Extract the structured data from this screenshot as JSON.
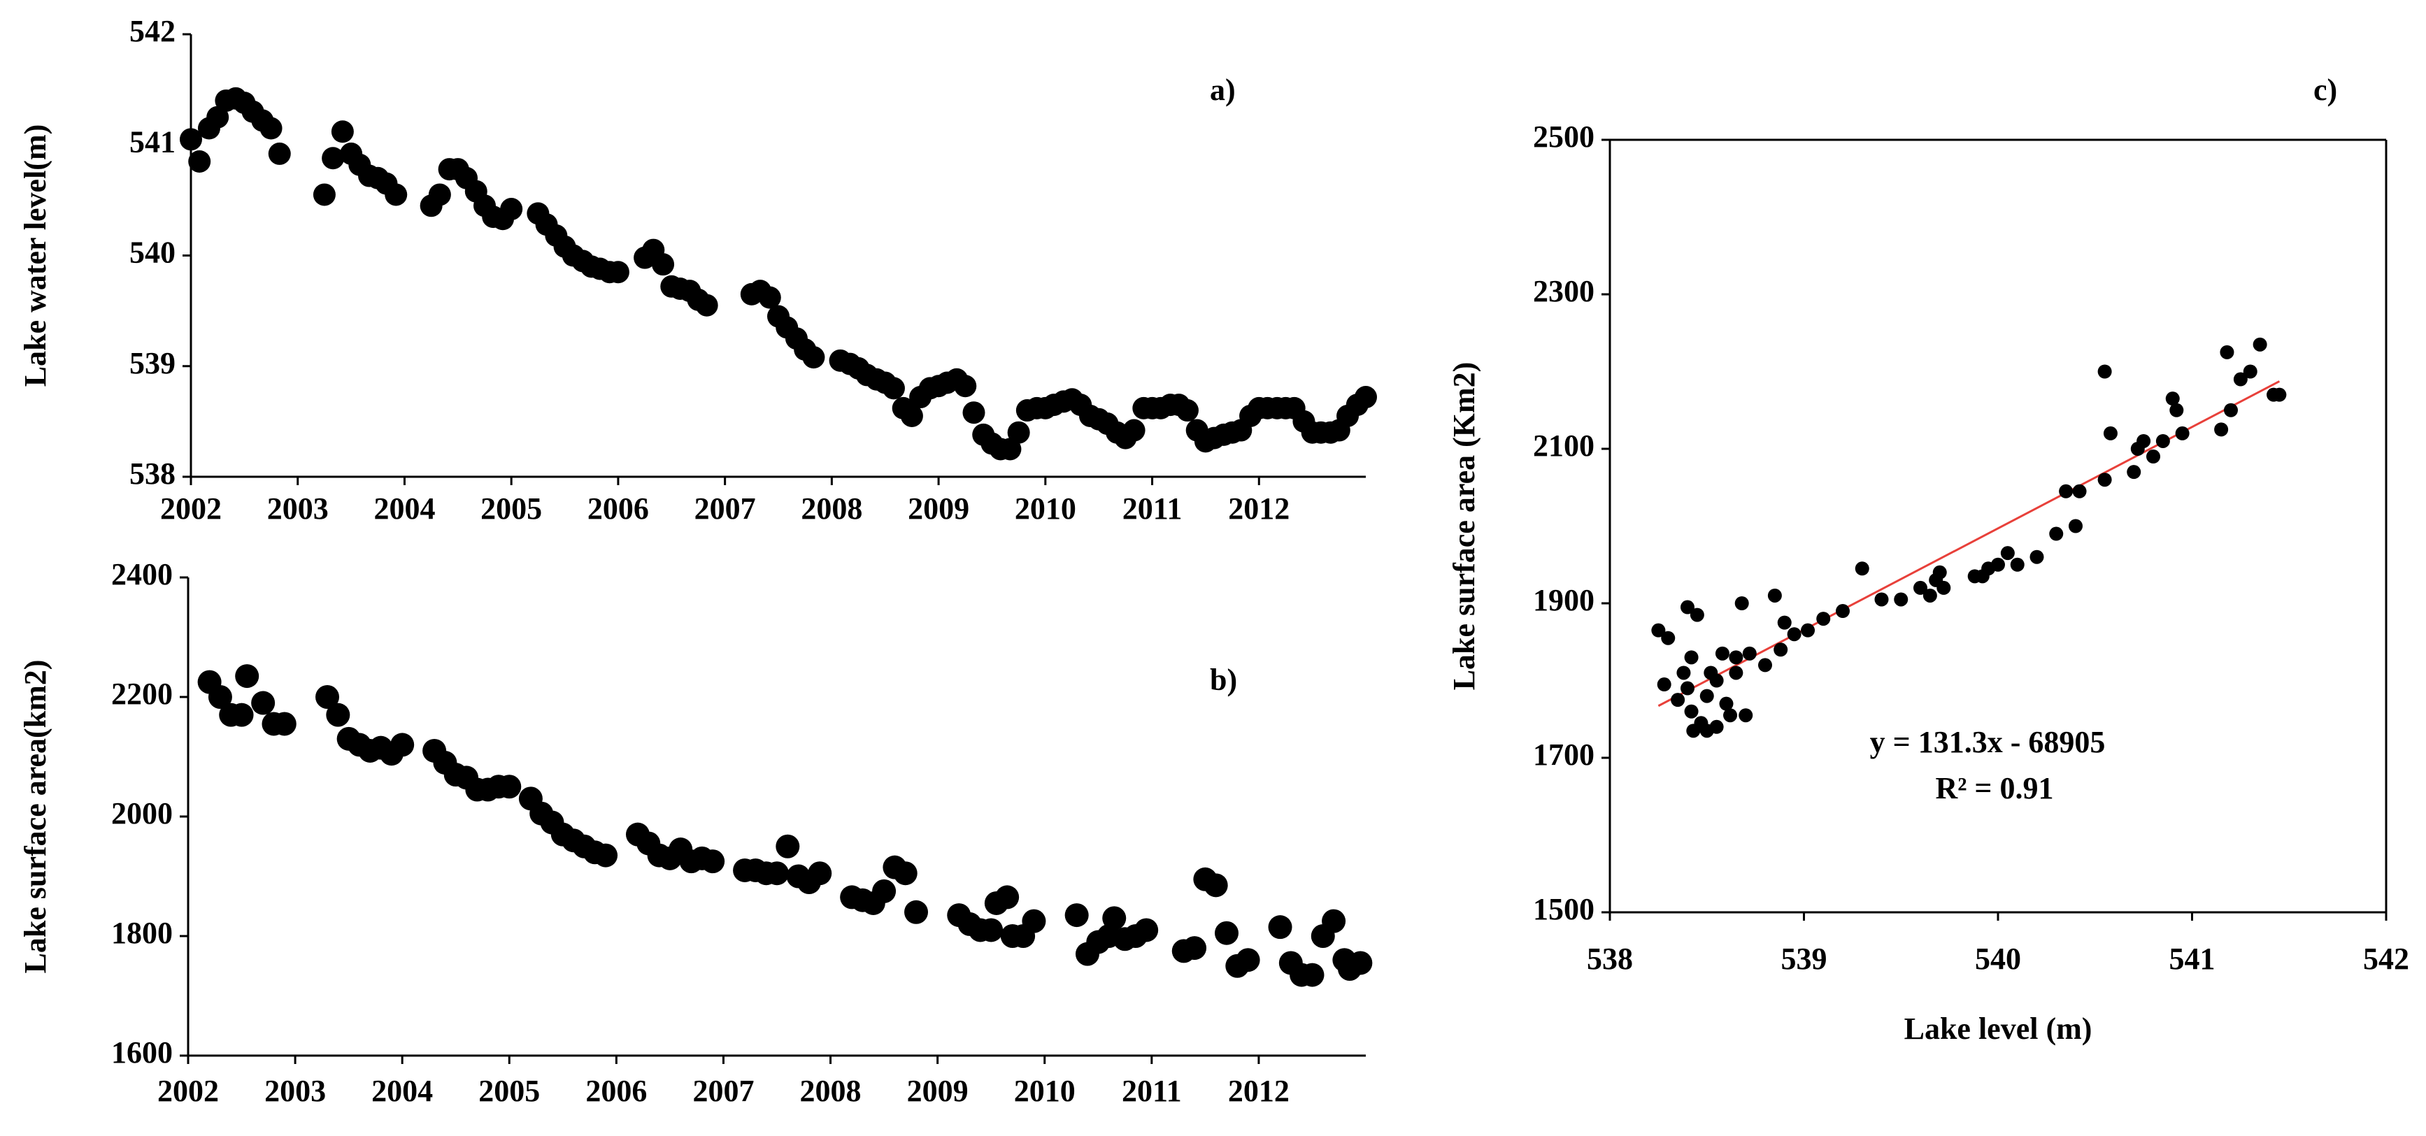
{
  "chart_data": [
    {
      "type": "scatter",
      "label": "a)",
      "ylabel": "Lake water level(m)",
      "color": "#000000",
      "frame": false,
      "xlim": [
        2002,
        2013
      ],
      "xticks": [
        2002,
        2003,
        2004,
        2005,
        2006,
        2007,
        2008,
        2009,
        2010,
        2011,
        2012
      ],
      "ylim": [
        538,
        542
      ],
      "yticks": [
        538,
        539,
        540,
        541,
        542
      ],
      "x": [
        2002.0,
        2002.08,
        2002.17,
        2002.25,
        2002.33,
        2002.42,
        2002.5,
        2002.58,
        2002.67,
        2002.75,
        2002.83,
        2003.25,
        2003.33,
        2003.42,
        2003.5,
        2003.58,
        2003.67,
        2003.75,
        2003.83,
        2003.92,
        2004.25,
        2004.33,
        2004.42,
        2004.5,
        2004.58,
        2004.67,
        2004.75,
        2004.83,
        2004.92,
        2005.0,
        2005.25,
        2005.33,
        2005.42,
        2005.5,
        2005.58,
        2005.67,
        2005.75,
        2005.83,
        2005.92,
        2006.0,
        2006.25,
        2006.33,
        2006.42,
        2006.5,
        2006.58,
        2006.67,
        2006.75,
        2006.83,
        2007.25,
        2007.33,
        2007.42,
        2007.5,
        2007.58,
        2007.67,
        2007.75,
        2007.83,
        2008.08,
        2008.17,
        2008.25,
        2008.33,
        2008.42,
        2008.5,
        2008.58,
        2008.67,
        2008.75,
        2008.83,
        2008.92,
        2009.0,
        2009.08,
        2009.17,
        2009.25,
        2009.33,
        2009.42,
        2009.5,
        2009.58,
        2009.67,
        2009.75,
        2009.83,
        2009.92,
        2010.0,
        2010.08,
        2010.17,
        2010.25,
        2010.33,
        2010.42,
        2010.5,
        2010.58,
        2010.67,
        2010.75,
        2010.83,
        2010.92,
        2011.0,
        2011.08,
        2011.17,
        2011.25,
        2011.33,
        2011.42,
        2011.5,
        2011.58,
        2011.67,
        2011.75,
        2011.83,
        2011.92,
        2012.0,
        2012.08,
        2012.17,
        2012.25,
        2012.33,
        2012.42,
        2012.5,
        2012.58,
        2012.67,
        2012.75,
        2012.83,
        2012.92,
        2013.0
      ],
      "values": [
        541.05,
        540.85,
        541.15,
        541.25,
        541.4,
        541.42,
        541.38,
        541.3,
        541.22,
        541.15,
        540.92,
        540.55,
        540.88,
        541.12,
        540.92,
        540.82,
        540.72,
        540.7,
        540.65,
        540.55,
        540.45,
        540.55,
        540.78,
        540.78,
        540.7,
        540.58,
        540.45,
        540.35,
        540.33,
        540.42,
        540.38,
        540.28,
        540.18,
        540.08,
        540.0,
        539.95,
        539.9,
        539.88,
        539.85,
        539.85,
        539.98,
        540.05,
        539.92,
        539.72,
        539.7,
        539.68,
        539.6,
        539.55,
        539.65,
        539.68,
        539.62,
        539.45,
        539.35,
        539.25,
        539.15,
        539.08,
        539.05,
        539.02,
        538.98,
        538.92,
        538.88,
        538.85,
        538.8,
        538.62,
        538.55,
        538.72,
        538.8,
        538.82,
        538.85,
        538.88,
        538.82,
        538.58,
        538.38,
        538.3,
        538.25,
        538.25,
        538.4,
        538.6,
        538.62,
        538.62,
        538.65,
        538.68,
        538.7,
        538.65,
        538.55,
        538.52,
        538.48,
        538.4,
        538.35,
        538.42,
        538.62,
        538.62,
        538.62,
        538.65,
        538.65,
        538.6,
        538.42,
        538.32,
        538.35,
        538.38,
        538.4,
        538.42,
        538.55,
        538.62,
        538.62,
        538.62,
        538.62,
        538.62,
        538.5,
        538.4,
        538.4,
        538.4,
        538.42,
        538.55,
        538.65,
        538.72
      ]
    },
    {
      "type": "scatter",
      "label": "b)",
      "ylabel": "Lake surface area(km2)",
      "color": "#000000",
      "frame": false,
      "xlim": [
        2002,
        2013
      ],
      "xticks": [
        2002,
        2003,
        2004,
        2005,
        2006,
        2007,
        2008,
        2009,
        2010,
        2011,
        2012
      ],
      "ylim": [
        1600,
        2400
      ],
      "yticks": [
        1600,
        1800,
        2000,
        2200,
        2400
      ],
      "x": [
        2002.2,
        2002.3,
        2002.4,
        2002.5,
        2002.55,
        2002.7,
        2002.8,
        2002.9,
        2003.3,
        2003.4,
        2003.5,
        2003.6,
        2003.7,
        2003.8,
        2003.9,
        2004.0,
        2004.3,
        2004.4,
        2004.5,
        2004.6,
        2004.7,
        2004.8,
        2004.9,
        2005.0,
        2005.2,
        2005.3,
        2005.4,
        2005.5,
        2005.6,
        2005.7,
        2005.8,
        2005.9,
        2006.2,
        2006.3,
        2006.4,
        2006.5,
        2006.6,
        2006.7,
        2006.8,
        2006.9,
        2007.2,
        2007.3,
        2007.4,
        2007.5,
        2007.6,
        2007.7,
        2007.8,
        2007.9,
        2008.2,
        2008.3,
        2008.4,
        2008.5,
        2008.6,
        2008.7,
        2008.8,
        2009.2,
        2009.3,
        2009.4,
        2009.5,
        2009.55,
        2009.65,
        2009.7,
        2009.8,
        2009.9,
        2010.3,
        2010.4,
        2010.5,
        2010.6,
        2010.65,
        2010.75,
        2010.85,
        2010.95,
        2011.3,
        2011.4,
        2011.5,
        2011.6,
        2011.7,
        2011.8,
        2011.9,
        2012.2,
        2012.3,
        2012.4,
        2012.5,
        2012.6,
        2012.7,
        2012.8,
        2012.85,
        2012.95
      ],
      "values": [
        2225,
        2200,
        2170,
        2170,
        2235,
        2190,
        2155,
        2155,
        2200,
        2170,
        2130,
        2120,
        2110,
        2115,
        2105,
        2120,
        2110,
        2090,
        2070,
        2065,
        2045,
        2045,
        2050,
        2050,
        2030,
        2005,
        1990,
        1970,
        1960,
        1950,
        1940,
        1935,
        1970,
        1955,
        1935,
        1930,
        1945,
        1925,
        1930,
        1925,
        1910,
        1910,
        1905,
        1905,
        1950,
        1900,
        1890,
        1905,
        1865,
        1860,
        1855,
        1875,
        1915,
        1905,
        1840,
        1835,
        1820,
        1810,
        1810,
        1855,
        1865,
        1800,
        1800,
        1825,
        1835,
        1770,
        1790,
        1800,
        1830,
        1795,
        1800,
        1810,
        1775,
        1780,
        1895,
        1885,
        1805,
        1750,
        1760,
        1815,
        1755,
        1735,
        1735,
        1800,
        1825,
        1760,
        1745,
        1755
      ]
    },
    {
      "type": "scatter",
      "label": "c)",
      "xlabel": "Lake level (m)",
      "ylabel": "Lake surface area (Km2)",
      "color": "#000000",
      "frame": true,
      "xlim": [
        538,
        542
      ],
      "xticks": [
        538,
        539,
        540,
        541,
        542
      ],
      "ylim": [
        1500,
        2500
      ],
      "yticks": [
        1500,
        1700,
        1900,
        2100,
        2300,
        2500
      ],
      "annotations": [
        "y = 131.3x - 68905",
        "R² = 0.91"
      ],
      "trendline": {
        "color": "#e8403a",
        "x": [
          538.25,
          541.45
        ],
        "values": [
          1767.2,
          2187.4
        ]
      },
      "x": [
        538.25,
        538.3,
        538.28,
        538.4,
        538.45,
        538.42,
        538.38,
        538.35,
        538.4,
        538.42,
        538.43,
        538.47,
        538.5,
        538.55,
        538.5,
        538.52,
        538.55,
        538.58,
        538.6,
        538.62,
        538.65,
        538.65,
        538.68,
        538.7,
        538.72,
        538.8,
        538.85,
        538.88,
        538.9,
        538.95,
        539.02,
        539.1,
        539.2,
        539.3,
        539.4,
        539.5,
        539.6,
        539.65,
        539.68,
        539.72,
        539.7,
        539.88,
        539.92,
        539.95,
        540.0,
        540.05,
        540.1,
        540.2,
        540.3,
        540.35,
        540.4,
        540.42,
        540.55,
        540.55,
        540.58,
        540.7,
        540.72,
        540.75,
        540.8,
        540.85,
        540.9,
        540.92,
        540.95,
        541.15,
        541.18,
        541.2,
        541.25,
        541.3,
        541.35,
        541.42,
        541.45
      ],
      "values": [
        1865,
        1855,
        1795,
        1895,
        1885,
        1830,
        1810,
        1775,
        1790,
        1760,
        1735,
        1745,
        1735,
        1740,
        1780,
        1810,
        1800,
        1835,
        1770,
        1755,
        1810,
        1830,
        1900,
        1755,
        1835,
        1820,
        1910,
        1840,
        1875,
        1860,
        1865,
        1880,
        1890,
        1945,
        1905,
        1905,
        1920,
        1910,
        1930,
        1920,
        1940,
        1935,
        1935,
        1945,
        1950,
        1965,
        1950,
        1960,
        1990,
        2045,
        2000,
        2045,
        2200,
        2060,
        2120,
        2070,
        2100,
        2110,
        2090,
        2110,
        2165,
        2150,
        2120,
        2125,
        2225,
        2150,
        2190,
        2200,
        2235,
        2170,
        2170
      ]
    }
  ]
}
